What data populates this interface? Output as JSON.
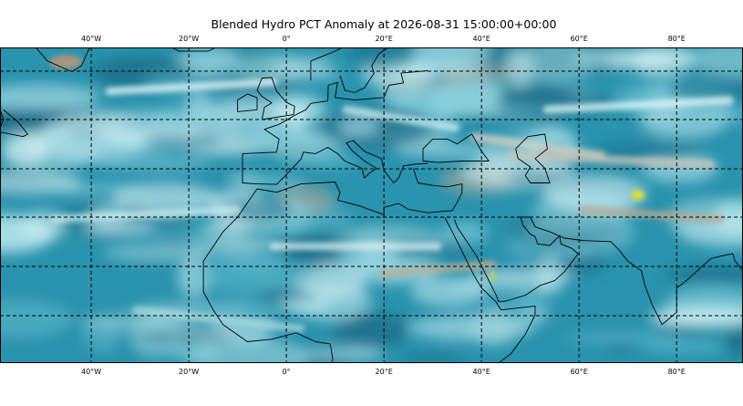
{
  "chart_data": {
    "type": "map",
    "title": "Blended Hydro PCT Anomaly at 2026-08-31 15:00:00+00:00",
    "xlim": [
      -58.7,
      93.6
    ],
    "xticks": [
      {
        "value": -40,
        "label": "40°W"
      },
      {
        "value": -20,
        "label": "20°W"
      },
      {
        "value": 0,
        "label": "0°"
      },
      {
        "value": 20,
        "label": "20°E"
      },
      {
        "value": 40,
        "label": "40°E"
      },
      {
        "value": 60,
        "label": "60°E"
      },
      {
        "value": 80,
        "label": "80°E"
      }
    ]
  }
}
